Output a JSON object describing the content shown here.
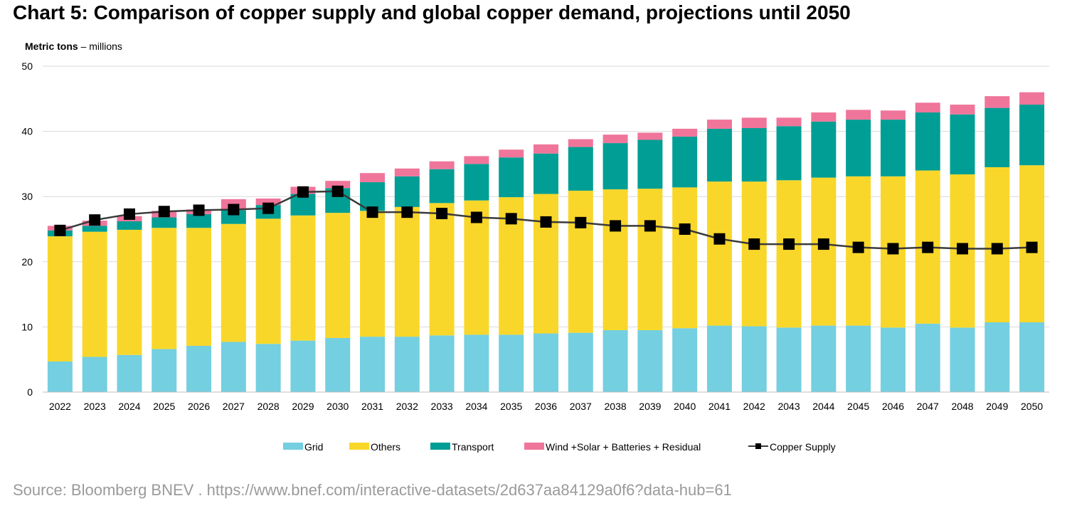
{
  "chart_data": {
    "type": "bar",
    "stacked": true,
    "title": "Chart 5: Comparison of copper supply and global copper demand, projections until 2050",
    "unit_label_bold": "Metric tons",
    "unit_label_rest": " – millions",
    "ylim": [
      0,
      50
    ],
    "yticks": [
      0,
      10,
      20,
      30,
      40,
      50
    ],
    "categories": [
      "2022",
      "2023",
      "2024",
      "2025",
      "2026",
      "2027",
      "2028",
      "2029",
      "2030",
      "2031",
      "2032",
      "2033",
      "2034",
      "2035",
      "2036",
      "2037",
      "2038",
      "2039",
      "2040",
      "2041",
      "2042",
      "2043",
      "2044",
      "2045",
      "2046",
      "2047",
      "2048",
      "2049",
      "2050"
    ],
    "series": [
      {
        "name": "Grid",
        "color": "#74cfe0",
        "kind": "bar",
        "values": [
          4.7,
          5.4,
          5.7,
          6.6,
          7.1,
          7.7,
          7.4,
          7.9,
          8.3,
          8.5,
          8.5,
          8.7,
          8.8,
          8.8,
          9.0,
          9.1,
          9.5,
          9.5,
          9.8,
          10.2,
          10.1,
          9.9,
          10.2,
          10.2,
          9.9,
          10.5,
          9.9,
          10.7,
          10.7
        ]
      },
      {
        "name": "Others",
        "color": "#f9d72a",
        "kind": "bar",
        "values": [
          19.2,
          19.2,
          19.2,
          18.6,
          18.1,
          18.1,
          19.2,
          19.2,
          19.2,
          19.3,
          19.9,
          20.3,
          20.6,
          21.1,
          21.4,
          21.8,
          21.6,
          21.7,
          21.6,
          22.1,
          22.2,
          22.6,
          22.7,
          22.9,
          23.2,
          23.5,
          23.5,
          23.8,
          24.1
        ]
      },
      {
        "name": "Transport",
        "color": "#009e94",
        "kind": "bar",
        "values": [
          0.9,
          0.9,
          1.3,
          1.6,
          2.1,
          2.1,
          2.1,
          3.3,
          3.8,
          4.4,
          4.7,
          5.2,
          5.6,
          6.1,
          6.2,
          6.7,
          7.1,
          7.5,
          7.8,
          8.1,
          8.2,
          8.3,
          8.6,
          8.7,
          8.7,
          8.9,
          9.2,
          9.1,
          9.3
        ]
      },
      {
        "name": "Wind +Solar + Batteries + Residual",
        "color": "#f0759a",
        "kind": "bar",
        "values": [
          0.7,
          0.8,
          0.8,
          1.0,
          0.7,
          1.7,
          1.0,
          1.1,
          1.1,
          1.4,
          1.2,
          1.2,
          1.2,
          1.2,
          1.4,
          1.2,
          1.3,
          1.1,
          1.2,
          1.4,
          1.6,
          1.3,
          1.4,
          1.5,
          1.4,
          1.5,
          1.5,
          1.8,
          1.9
        ]
      },
      {
        "name": "Copper Supply",
        "color": "#333333",
        "kind": "line",
        "values": [
          24.8,
          26.4,
          27.3,
          27.7,
          27.9,
          28.0,
          28.2,
          30.7,
          30.8,
          27.6,
          27.6,
          27.4,
          26.8,
          26.6,
          26.1,
          26.0,
          25.5,
          25.5,
          25.0,
          23.5,
          22.7,
          22.7,
          22.7,
          22.2,
          22.0,
          22.2,
          22.0,
          22.0,
          22.2
        ]
      }
    ]
  },
  "source": "Source: Bloomberg BNEV . https://www.bnef.com/interactive-datasets/2d637aa84129a0f6?data-hub=61"
}
